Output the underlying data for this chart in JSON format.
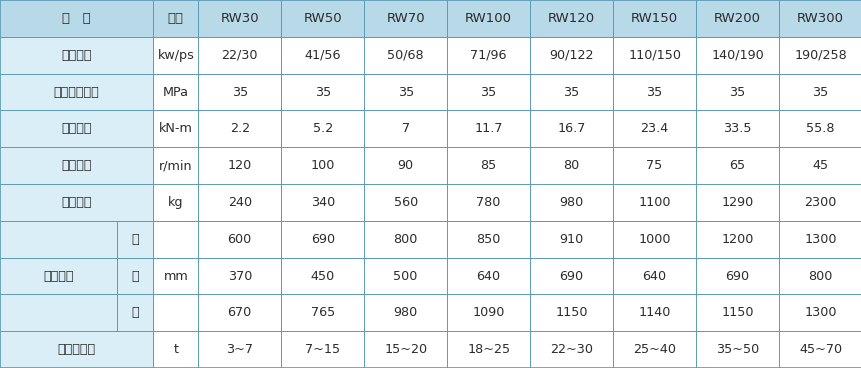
{
  "header_bg": "#b8d9e8",
  "cell_bg_light": "#daeef7",
  "cell_bg_white": "#ffffff",
  "line_color": "#5b9ab5",
  "text_color": "#2c2c2c",
  "header_row": [
    "项   目",
    "单位",
    "RW30",
    "RW50",
    "RW70",
    "RW100",
    "RW120",
    "RW150",
    "RW200",
    "RW300"
  ],
  "rows_data": [
    [
      "额定功率",
      "kw/ps",
      "22/30",
      "41/56",
      "50/68",
      "71/96",
      "90/122",
      "110/150",
      "140/190",
      "190/258"
    ],
    [
      "额定工作压力",
      "MPa",
      "35",
      "35",
      "35",
      "35",
      "35",
      "35",
      "35",
      "35"
    ],
    [
      "输出力矩",
      "kN-m",
      "2.2",
      "5.2",
      "7",
      "11.7",
      "16.7",
      "23.4",
      "33.5",
      "55.8"
    ],
    [
      "额定转速",
      "r/min",
      "120",
      "100",
      "90",
      "85",
      "80",
      "75",
      "65",
      "45"
    ],
    [
      "机器质量",
      "kg",
      "240",
      "340",
      "560",
      "780",
      "980",
      "1100",
      "1290",
      "2300"
    ]
  ],
  "waixing_label": "外形尺寸",
  "waixing_unit": "mm",
  "waixing_subs": [
    "长",
    "宽",
    "高"
  ],
  "waixing_data": [
    [
      "600",
      "690",
      "800",
      "850",
      "910",
      "1000",
      "1200",
      "1300"
    ],
    [
      "370",
      "450",
      "500",
      "640",
      "690",
      "640",
      "690",
      "800"
    ],
    [
      "670",
      "765",
      "980",
      "1090",
      "1150",
      "1140",
      "1150",
      "1300"
    ]
  ],
  "last_row": [
    "适用挖掊机",
    "t",
    "3~7",
    "7~15",
    "15~20",
    "18~25",
    "22~30",
    "25~40",
    "35~50",
    "45~70"
  ],
  "figsize": [
    8.62,
    3.68
  ],
  "dpi": 100
}
